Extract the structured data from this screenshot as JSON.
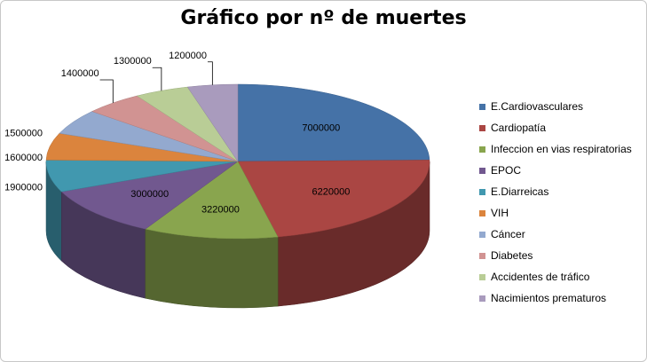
{
  "chart_data": {
    "type": "pie",
    "title": "Gráfico por nº de muertes",
    "categories": [
      "E.Cardiovasculares",
      "Cardiopatía",
      "Infeccion en vias respiratorias",
      "EPOC",
      "E.Diarreicas",
      "VIH",
      "Cáncer",
      "Diabetes",
      "Accidentes de tráfico",
      "Nacimientos prematuros"
    ],
    "values": [
      7000000,
      6220000,
      3220000,
      3000000,
      1900000,
      1600000,
      1500000,
      1400000,
      1300000,
      1200000
    ],
    "labels": [
      "7000000",
      "6220000",
      "3220000",
      "3000000",
      "1900000",
      "1600000",
      "1500000",
      "1400000",
      "1300000",
      "1200000"
    ],
    "colors": [
      "#4572A7",
      "#AA4643",
      "#89A54E",
      "#71588F",
      "#4198AF",
      "#DB843D",
      "#93A9CF",
      "#D19392",
      "#B9CD96",
      "#A99BBD"
    ],
    "legend_position": "right",
    "style": "3d"
  }
}
